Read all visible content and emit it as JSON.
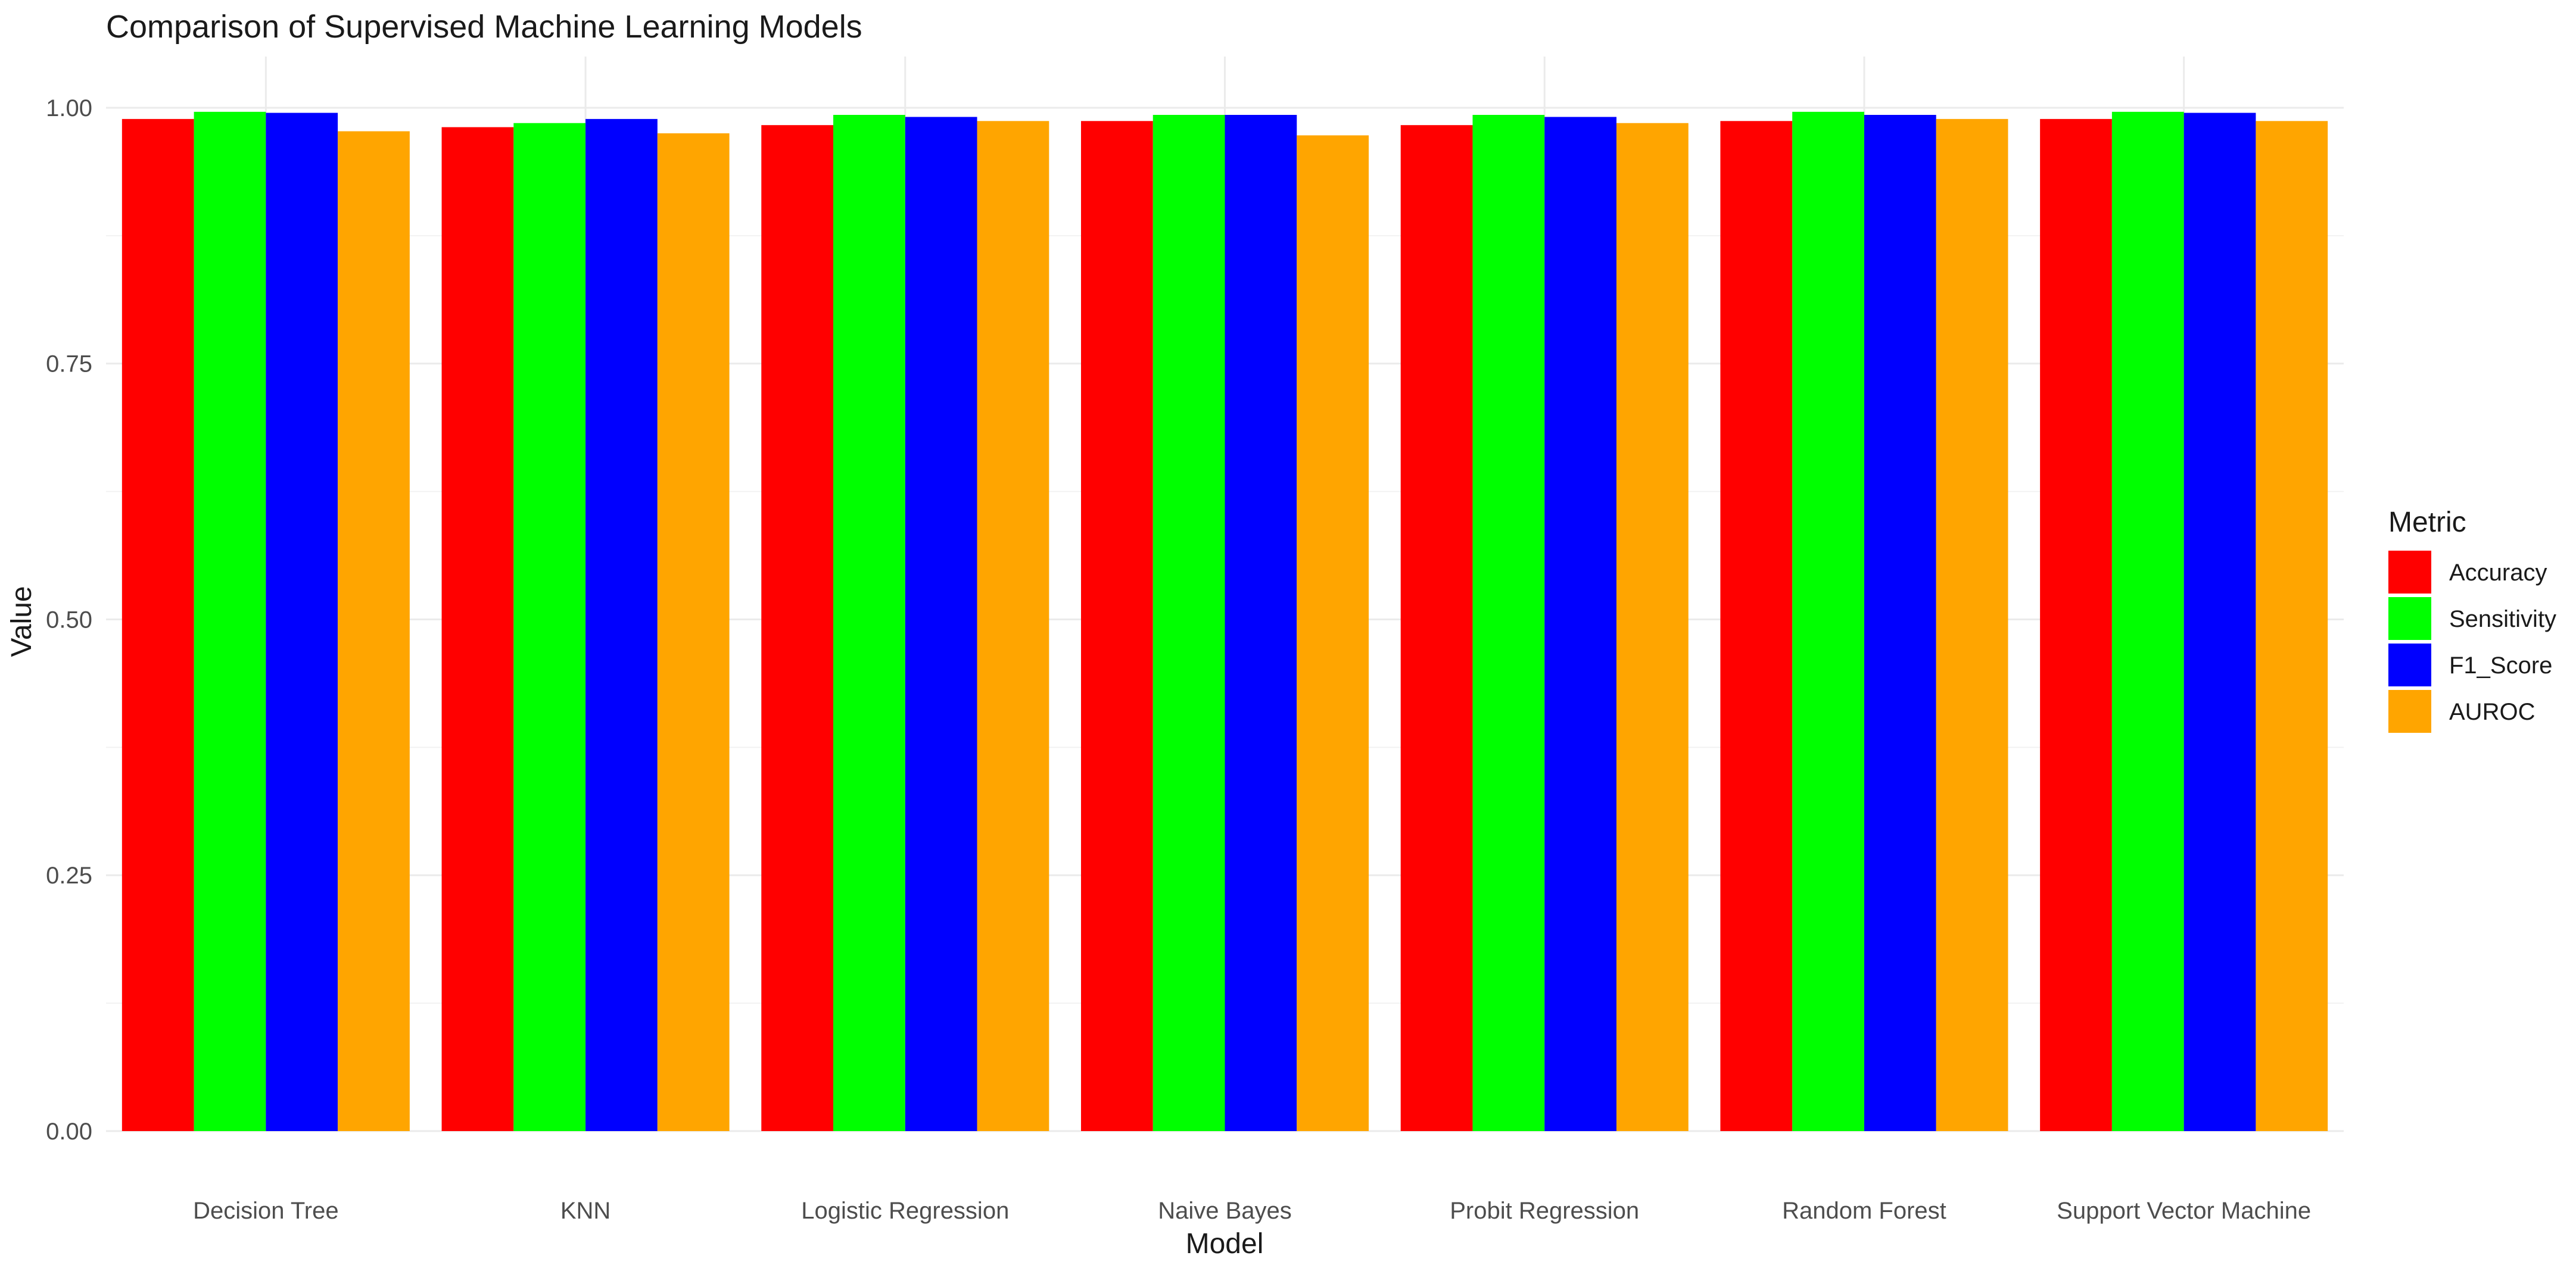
{
  "chart_data": {
    "type": "bar",
    "title": "Comparison of Supervised Machine Learning Models",
    "xlabel": "Model",
    "ylabel": "Value",
    "ylim": [
      0,
      1.0
    ],
    "yticks": [
      "0.00",
      "0.25",
      "0.50",
      "0.75",
      "1.00"
    ],
    "yticks_values": [
      0,
      0.25,
      0.5,
      0.75,
      1.0
    ],
    "grid": true,
    "legend": {
      "title": "Metric",
      "position": "right"
    },
    "categories": [
      "Decision Tree",
      "KNN",
      "Logistic Regression",
      "Naive Bayes",
      "Probit Regression",
      "Random Forest",
      "Support Vector Machine"
    ],
    "series": [
      {
        "name": "Accuracy",
        "color": "#ff0000",
        "values": [
          0.989,
          0.981,
          0.983,
          0.987,
          0.983,
          0.987,
          0.989
        ]
      },
      {
        "name": "Sensitivity",
        "color": "#00ff00",
        "values": [
          0.996,
          0.985,
          0.993,
          0.993,
          0.993,
          0.996,
          0.996
        ]
      },
      {
        "name": "F1_Score",
        "color": "#0000ff",
        "values": [
          0.995,
          0.989,
          0.991,
          0.993,
          0.991,
          0.993,
          0.995
        ]
      },
      {
        "name": "AUROC",
        "color": "#ffa500",
        "values": [
          0.977,
          0.975,
          0.987,
          0.973,
          0.985,
          0.989,
          0.987
        ]
      }
    ]
  }
}
